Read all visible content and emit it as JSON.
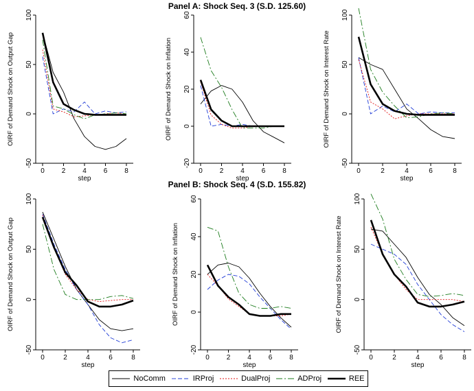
{
  "panels": [
    {
      "title": "Panel A: Shock Seq. 3 (S.D. 125.60)"
    },
    {
      "title": "Panel B: Shock Seq. 4 (S.D. 155.82)"
    }
  ],
  "series_styles": [
    {
      "name": "NoComm",
      "color": "#000000",
      "dash": "",
      "width": 0.9
    },
    {
      "name": "IRProj",
      "color": "#1f3bd6",
      "dash": "6,3",
      "width": 0.9
    },
    {
      "name": "DualProj",
      "color": "#e01010",
      "dash": "2,2",
      "width": 0.9
    },
    {
      "name": "ADProj",
      "color": "#1a7a1a",
      "dash": "9,3,2,3",
      "width": 0.9
    },
    {
      "name": "REE",
      "color": "#000000",
      "dash": "",
      "width": 2.6
    }
  ],
  "chart_data": [
    {
      "type": "line",
      "panel": "A",
      "xlabel": "step",
      "ylabel": "OIRF of Demand Shock on Output Gap",
      "x": [
        0,
        1,
        2,
        3,
        4,
        5,
        6,
        7,
        8
      ],
      "xticks": [
        0,
        2,
        4,
        6,
        8
      ],
      "ylim": [
        -50,
        100
      ],
      "yticks": [
        -50,
        0,
        50,
        100
      ],
      "series": [
        {
          "name": "NoComm",
          "values": [
            82,
            42,
            22,
            -5,
            -23,
            -33,
            -36,
            -33,
            -25
          ]
        },
        {
          "name": "IRProj",
          "values": [
            58,
            0,
            5,
            2,
            12,
            0,
            3,
            1,
            2
          ]
        },
        {
          "name": "DualProj",
          "values": [
            65,
            5,
            2,
            -3,
            -2,
            -1,
            0,
            1,
            0
          ]
        },
        {
          "name": "ADProj",
          "values": [
            75,
            8,
            5,
            -1,
            -5,
            -1,
            0,
            1,
            0
          ]
        },
        {
          "name": "REE",
          "values": [
            82,
            32,
            10,
            4,
            0,
            -1,
            -1,
            -1,
            -1
          ]
        }
      ]
    },
    {
      "type": "line",
      "panel": "A",
      "xlabel": "step",
      "ylabel": "OIRF of Demand Shock on Inflation",
      "x": [
        0,
        1,
        2,
        3,
        4,
        5,
        6,
        7,
        8
      ],
      "xticks": [
        0,
        2,
        4,
        6,
        8
      ],
      "ylim": [
        -20,
        60
      ],
      "yticks": [
        -20,
        0,
        20,
        40,
        60
      ],
      "series": [
        {
          "name": "NoComm",
          "values": [
            12,
            19,
            22,
            20,
            13,
            3,
            -3,
            -6,
            -9
          ]
        },
        {
          "name": "IRProj",
          "values": [
            22,
            0,
            1,
            0,
            1,
            0,
            0,
            0,
            0
          ]
        },
        {
          "name": "DualProj",
          "values": [
            24,
            6,
            1,
            -1,
            -1,
            0,
            0,
            0,
            0
          ]
        },
        {
          "name": "ADProj",
          "values": [
            48,
            30,
            21,
            9,
            -1,
            -1,
            -1,
            0,
            0
          ]
        },
        {
          "name": "REE",
          "values": [
            25,
            9,
            3,
            0,
            0,
            0,
            0,
            0,
            0
          ]
        }
      ]
    },
    {
      "type": "line",
      "panel": "A",
      "xlabel": "step",
      "ylabel": "OIRF of Demand Shock on Interest Rate",
      "x": [
        0,
        1,
        2,
        3,
        4,
        5,
        6,
        7,
        8
      ],
      "xticks": [
        0,
        2,
        4,
        6,
        8
      ],
      "ylim": [
        -50,
        100
      ],
      "yticks": [
        -50,
        0,
        50,
        100
      ],
      "series": [
        {
          "name": "NoComm",
          "values": [
            57,
            50,
            45,
            25,
            5,
            -5,
            -16,
            -23,
            -25
          ]
        },
        {
          "name": "IRProj",
          "values": [
            57,
            0,
            8,
            2,
            10,
            0,
            2,
            1,
            1
          ]
        },
        {
          "name": "DualProj",
          "values": [
            55,
            12,
            5,
            -5,
            -2,
            0,
            0,
            0,
            0
          ]
        },
        {
          "name": "ADProj",
          "values": [
            107,
            45,
            22,
            8,
            -4,
            -3,
            0,
            1,
            0
          ]
        },
        {
          "name": "REE",
          "values": [
            78,
            30,
            10,
            3,
            0,
            -1,
            -1,
            -1,
            -1
          ]
        }
      ]
    },
    {
      "type": "line",
      "panel": "B",
      "xlabel": "step",
      "ylabel": "OIRF of Demand Shock on Output Gap",
      "x": [
        0,
        1,
        2,
        3,
        4,
        5,
        6,
        7,
        8
      ],
      "xticks": [
        0,
        2,
        4,
        6,
        8
      ],
      "ylim": [
        -50,
        100
      ],
      "yticks": [
        -50,
        0,
        50,
        100
      ],
      "series": [
        {
          "name": "NoComm",
          "values": [
            87,
            60,
            33,
            10,
            -5,
            -20,
            -29,
            -31,
            -29
          ]
        },
        {
          "name": "IRProj",
          "values": [
            85,
            55,
            30,
            10,
            -5,
            -25,
            -38,
            -43,
            -40
          ]
        },
        {
          "name": "DualProj",
          "values": [
            84,
            52,
            25,
            10,
            0,
            -2,
            -1,
            0,
            0
          ]
        },
        {
          "name": "ADProj",
          "values": [
            75,
            30,
            5,
            0,
            0,
            0,
            3,
            4,
            1
          ]
        },
        {
          "name": "REE",
          "values": [
            82,
            52,
            27,
            14,
            -2,
            -7,
            -7,
            -5,
            -1
          ]
        }
      ]
    },
    {
      "type": "line",
      "panel": "B",
      "xlabel": "step",
      "ylabel": "OIRF of Demand Shock on Inflation",
      "x": [
        0,
        1,
        2,
        3,
        4,
        5,
        6,
        7,
        8
      ],
      "xticks": [
        0,
        2,
        4,
        6,
        8
      ],
      "ylim": [
        -20,
        60
      ],
      "yticks": [
        -20,
        0,
        20,
        40,
        60
      ],
      "series": [
        {
          "name": "NoComm",
          "values": [
            20,
            25,
            26,
            24,
            18,
            10,
            3,
            -3,
            -8
          ]
        },
        {
          "name": "IRProj",
          "values": [
            12,
            17,
            20,
            19,
            15,
            8,
            2,
            -4,
            -9
          ]
        },
        {
          "name": "DualProj",
          "values": [
            20,
            14,
            7,
            3,
            -1,
            -2,
            -2,
            -2,
            -1
          ]
        },
        {
          "name": "ADProj",
          "values": [
            45,
            43,
            24,
            10,
            4,
            2,
            2,
            3,
            2
          ]
        },
        {
          "name": "REE",
          "values": [
            25,
            14,
            8,
            4,
            -1,
            -2,
            -2,
            -1,
            -1
          ]
        }
      ]
    },
    {
      "type": "line",
      "panel": "B",
      "xlabel": "step",
      "ylabel": "OIRF of Demand Shock on Interest Rate",
      "x": [
        0,
        1,
        2,
        3,
        4,
        5,
        6,
        7,
        8
      ],
      "xticks": [
        0,
        2,
        4,
        6,
        8
      ],
      "ylim": [
        -50,
        100
      ],
      "yticks": [
        -50,
        0,
        50,
        100
      ],
      "series": [
        {
          "name": "NoComm",
          "values": [
            70,
            68,
            55,
            42,
            22,
            5,
            -5,
            -18,
            -26
          ]
        },
        {
          "name": "IRProj",
          "values": [
            55,
            50,
            45,
            35,
            15,
            0,
            -15,
            -25,
            -32
          ]
        },
        {
          "name": "DualProj",
          "values": [
            72,
            45,
            25,
            10,
            0,
            0,
            0,
            0,
            -2
          ]
        },
        {
          "name": "ADProj",
          "values": [
            105,
            80,
            40,
            20,
            5,
            3,
            4,
            6,
            4
          ]
        },
        {
          "name": "REE",
          "values": [
            79,
            45,
            25,
            13,
            -3,
            -7,
            -7,
            -5,
            -2
          ]
        }
      ]
    }
  ]
}
